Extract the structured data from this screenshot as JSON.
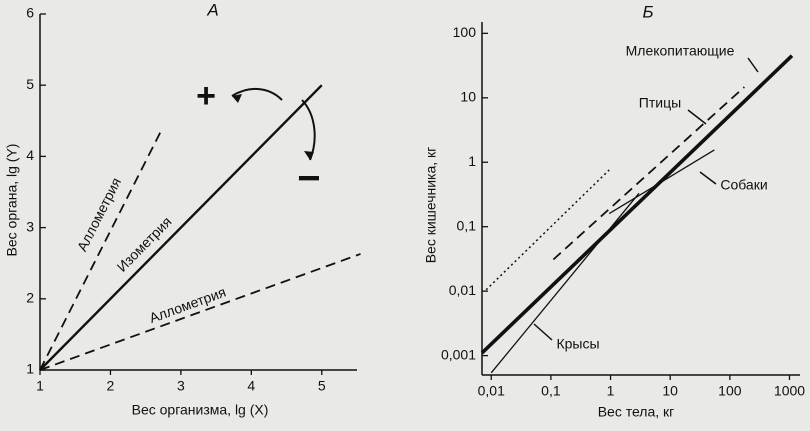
{
  "chart_data": [
    {
      "type": "line",
      "title": "А",
      "x_label": "Вес организма, lg (X)",
      "y_label": "Вес органа, lg (Y)",
      "xlim": [
        1,
        5.5
      ],
      "ylim": [
        1,
        6
      ],
      "xticks": [
        1,
        2,
        3,
        4,
        5
      ],
      "yticks": [
        1,
        2,
        3,
        4,
        5,
        6
      ],
      "annotations": [
        "+",
        "−"
      ],
      "series": [
        {
          "name": "Аллометрия",
          "color": "#111111",
          "style": "dashed",
          "x": [
            1,
            2.74
          ],
          "values": [
            1,
            4.4
          ]
        },
        {
          "name": "Изометрия",
          "color": "#111111",
          "style": "solid",
          "x": [
            1,
            5
          ],
          "values": [
            1,
            5
          ]
        },
        {
          "name": "Аллометрия",
          "color": "#111111",
          "style": "dashed",
          "x": [
            1,
            5.55
          ],
          "values": [
            1,
            2.63
          ]
        }
      ]
    },
    {
      "type": "line",
      "title": "Б",
      "x_label": "Вес тела, кг",
      "y_label": "Вес кишечника, кг",
      "xscale": "log",
      "yscale": "log",
      "xlim": [
        0.007,
        1500
      ],
      "ylim": [
        0.0005,
        150
      ],
      "xticks": [
        {
          "value": 0.01,
          "label": "0,01"
        },
        {
          "value": 0.1,
          "label": "0,1"
        },
        1,
        10,
        100,
        1000
      ],
      "yticks": [
        {
          "value": 0.001,
          "label": "0,001"
        },
        {
          "value": 0.01,
          "label": "0,01"
        },
        {
          "value": 0.1,
          "label": "0,1"
        },
        1,
        10,
        100
      ],
      "series": [
        {
          "name": "Млекопитающие",
          "color": "#111111",
          "style": "thick",
          "x": [
            0.007,
            1100
          ],
          "values": [
            0.0011,
            45
          ]
        },
        {
          "name": "Птицы",
          "color": "#111111",
          "style": "dashed",
          "x": [
            0.11,
            175
          ],
          "values": [
            0.031,
            14.7
          ]
        },
        {
          "name": "Собаки",
          "color": "#111111",
          "style": "thin",
          "x": [
            0.95,
            55
          ],
          "values": [
            0.16,
            1.55
          ]
        },
        {
          "name": "Крысы",
          "color": "#111111",
          "style": "thin",
          "x": [
            0.01,
            3
          ],
          "values": [
            0.00054,
            0.33
          ]
        },
        {
          "color": "#111111",
          "style": "dotted",
          "x": [
            0.0082,
            0.95
          ],
          "values": [
            0.0105,
            0.76
          ]
        }
      ]
    }
  ]
}
